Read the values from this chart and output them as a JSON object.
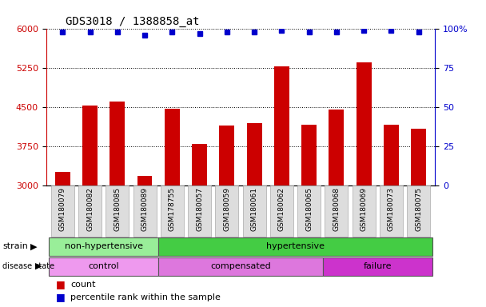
{
  "title": "GDS3018 / 1388858_at",
  "samples": [
    "GSM180079",
    "GSM180082",
    "GSM180085",
    "GSM180089",
    "GSM178755",
    "GSM180057",
    "GSM180059",
    "GSM180061",
    "GSM180062",
    "GSM180065",
    "GSM180068",
    "GSM180069",
    "GSM180073",
    "GSM180075"
  ],
  "counts": [
    3270,
    4540,
    4620,
    3190,
    4470,
    3800,
    4150,
    4200,
    5280,
    4170,
    4460,
    5360,
    4170,
    4100
  ],
  "percentile_ranks": [
    98,
    98,
    98,
    96,
    98,
    97,
    98,
    98,
    99,
    98,
    98,
    99,
    99,
    98
  ],
  "ymin": 3000,
  "ymax": 6000,
  "yticks": [
    3000,
    3750,
    4500,
    5250,
    6000
  ],
  "right_yticks": [
    0,
    25,
    50,
    75,
    100
  ],
  "bar_color": "#cc0000",
  "percentile_color": "#0000cc",
  "strain_segments": [
    {
      "label": "non-hypertensive",
      "start": 0,
      "end": 4,
      "color": "#99ee99"
    },
    {
      "label": "hypertensive",
      "start": 4,
      "end": 14,
      "color": "#44cc44"
    }
  ],
  "disease_segments": [
    {
      "label": "control",
      "start": 0,
      "end": 4,
      "color": "#ee99ee"
    },
    {
      "label": "compensated",
      "start": 4,
      "end": 10,
      "color": "#dd77dd"
    },
    {
      "label": "failure",
      "start": 10,
      "end": 14,
      "color": "#cc33cc"
    }
  ],
  "legend_count_label": "count",
  "legend_percentile_label": "percentile rank within the sample",
  "tick_color_left": "#cc0000",
  "tick_color_right": "#0000cc",
  "xlabel_bg": "#dddddd",
  "xlabel_border": "#aaaaaa"
}
